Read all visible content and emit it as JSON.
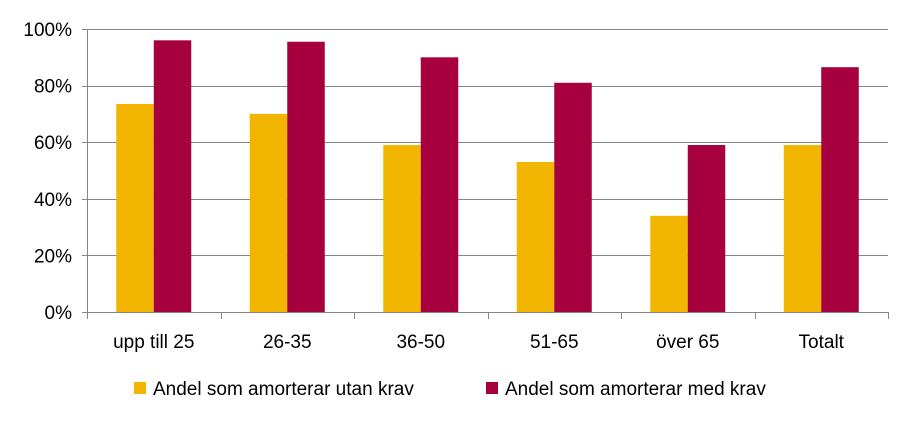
{
  "chart_data": {
    "type": "bar",
    "categories": [
      "upp till 25",
      "26-35",
      "36-50",
      "51-65",
      "över 65",
      "Totalt"
    ],
    "series": [
      {
        "name": "Andel som amorterar utan krav",
        "color": "#F2B600",
        "values": [
          73.5,
          70,
          59,
          53,
          34,
          59
        ]
      },
      {
        "name": "Andel som amorterar med krav",
        "color": "#A6003E",
        "values": [
          96,
          95.5,
          90,
          81,
          59,
          86.5
        ]
      }
    ],
    "ylim": [
      0,
      100
    ],
    "yticks": [
      0,
      20,
      40,
      60,
      80,
      100
    ],
    "ytick_labels": [
      "0%",
      "20%",
      "40%",
      "60%",
      "80%",
      "100%"
    ],
    "grid": true,
    "legend_position": "bottom",
    "title": "",
    "xlabel": "",
    "ylabel": ""
  }
}
